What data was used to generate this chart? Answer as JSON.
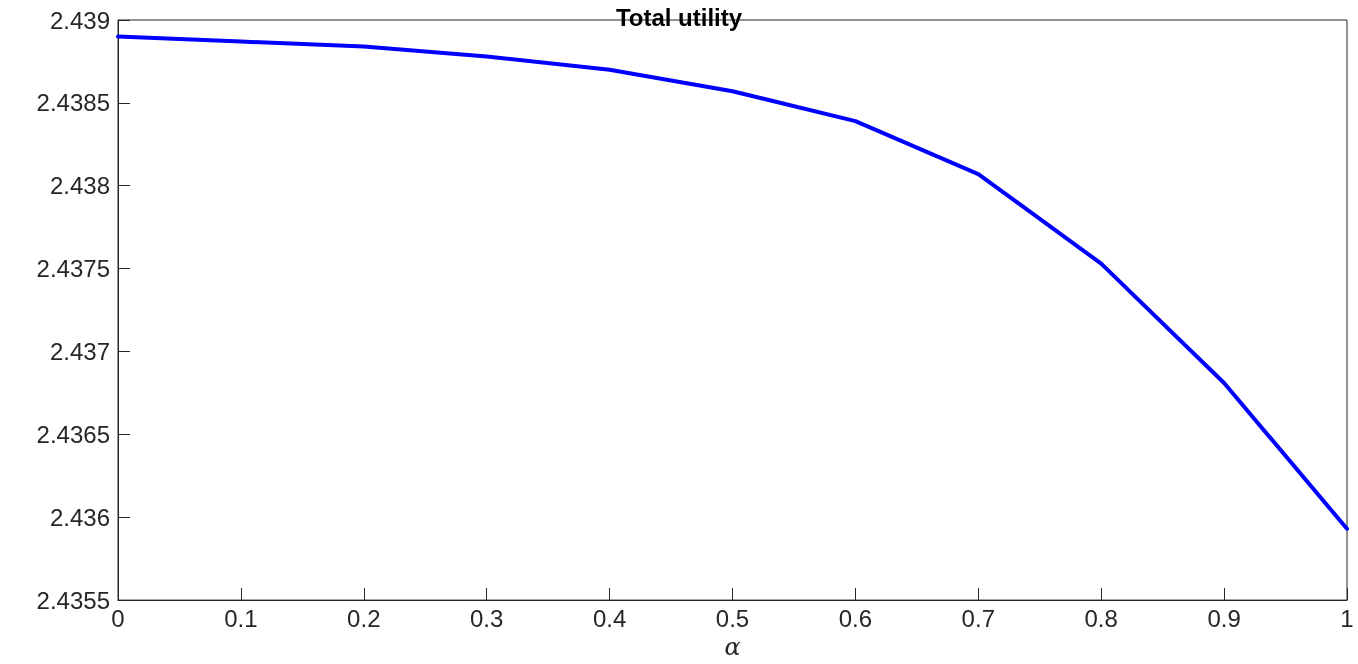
{
  "chart_data": {
    "type": "line",
    "title": "Total utility",
    "xlabel": "α",
    "x": [
      0,
      0.1,
      0.2,
      0.3,
      0.4,
      0.5,
      0.6,
      0.7,
      0.8,
      0.9,
      1
    ],
    "series": [
      {
        "color": "#0000ff",
        "values": [
          2.4389,
          2.43887,
          2.43884,
          2.43878,
          2.4387,
          2.43857,
          2.43839,
          2.43807,
          2.43753,
          2.43681,
          2.43593
        ]
      }
    ],
    "xlim": [
      0,
      1
    ],
    "xticks": [
      0,
      0.1,
      0.2,
      0.3,
      0.4,
      0.5,
      0.6,
      0.7,
      0.8,
      0.9,
      1
    ],
    "ylim": [
      2.4355,
      2.439
    ],
    "yticks": [
      2.4355,
      2.436,
      2.4365,
      2.437,
      2.4375,
      2.438,
      2.4385,
      2.439
    ],
    "grid": false,
    "marker": "none",
    "line_style": "solid"
  }
}
